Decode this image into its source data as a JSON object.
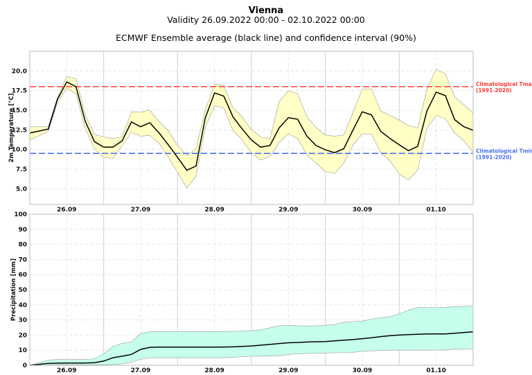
{
  "header": {
    "title": "Vienna",
    "validity": "Validity 26.09.2022 00:00 - 02.10.2022 00:00",
    "subtitle": "ECMWF Ensemble average (black line) and confidence interval (90%)"
  },
  "colors": {
    "temp_band": "#ffffc6",
    "precip_band": "#c6ffec",
    "mean_line": "#000000",
    "tmax_line": "#ff3b3b",
    "tmin_line": "#4a6ff0"
  },
  "chart_data": [
    {
      "type": "area",
      "ylabel": "2m Temperature [°C]",
      "xlim": [
        "2022-09-26 00:00",
        "2022-10-02 00:00"
      ],
      "ylim": [
        3.0,
        22.5
      ],
      "yticks": [
        "5.0",
        "7.5",
        "10.0",
        "12.5",
        "15.0",
        "17.5",
        "20.0"
      ],
      "xticks": [
        "26.09",
        "27.09",
        "28.09",
        "29.09",
        "30.09",
        "01.10"
      ],
      "grid": true,
      "time_step_hours": [
        0,
        6,
        9,
        12,
        15,
        18,
        21,
        24,
        27,
        30,
        33,
        36,
        39,
        42,
        45,
        48,
        51,
        54,
        57,
        60,
        63,
        66,
        69,
        72,
        75,
        78,
        81,
        84,
        87,
        90,
        93,
        96,
        99,
        102,
        105,
        108,
        111,
        114,
        117,
        120,
        123,
        126,
        129,
        132,
        135,
        138,
        141,
        144
      ],
      "mean": [
        12.1,
        12.6,
        16.4,
        18.6,
        18.0,
        13.6,
        11.0,
        10.3,
        10.3,
        11.1,
        13.5,
        12.9,
        13.4,
        12.1,
        10.6,
        9.0,
        7.35,
        7.9,
        14.0,
        17.2,
        16.8,
        14.15,
        12.6,
        11.2,
        10.3,
        10.5,
        12.75,
        14.05,
        13.85,
        11.7,
        10.5,
        9.95,
        9.6,
        10.1,
        12.5,
        14.8,
        14.4,
        12.3,
        11.4,
        10.6,
        9.85,
        10.4,
        14.9,
        17.3,
        16.85,
        13.8,
        12.9,
        12.45
      ],
      "upper": [
        12.9,
        12.9,
        16.65,
        19.3,
        19.0,
        14.4,
        11.95,
        11.6,
        11.4,
        11.6,
        14.8,
        14.75,
        15.0,
        13.55,
        12.4,
        10.5,
        9.2,
        10.1,
        15.0,
        18.3,
        18.15,
        15.3,
        14.15,
        12.5,
        11.6,
        11.35,
        16.1,
        17.5,
        17.1,
        14.15,
        12.8,
        11.85,
        11.7,
        11.85,
        14.75,
        17.7,
        17.7,
        14.9,
        14.35,
        13.75,
        13.05,
        12.75,
        17.7,
        20.2,
        19.6,
        16.7,
        15.7,
        14.65
      ],
      "lower": [
        11.2,
        12.3,
        16.0,
        17.8,
        17.1,
        12.7,
        10.1,
        9.0,
        8.85,
        10.5,
        12.2,
        11.7,
        11.8,
        10.8,
        9.0,
        7.1,
        5.1,
        6.6,
        12.8,
        15.6,
        15.3,
        12.4,
        11.2,
        9.6,
        8.65,
        9.15,
        10.9,
        12.0,
        11.4,
        9.35,
        8.25,
        7.2,
        6.95,
        8.25,
        10.6,
        12.0,
        11.95,
        9.6,
        8.55,
        6.9,
        6.1,
        7.4,
        12.7,
        14.35,
        13.9,
        12.1,
        11.1,
        9.65
      ],
      "reference_lines": [
        {
          "name": "Climatological Tmax",
          "period": "(1991-2020)",
          "value": 18.0,
          "color": "#ff3b3b"
        },
        {
          "name": "Climatological Tmin",
          "period": "(1991-2020)",
          "value": 9.5,
          "color": "#4a6ff0"
        }
      ]
    },
    {
      "type": "area",
      "ylabel": "Precipitation [mm]",
      "xlim": [
        "2022-09-26 00:00",
        "2022-10-02 00:00"
      ],
      "ylim": [
        0,
        100
      ],
      "yticks": [
        "0",
        "10",
        "20",
        "30",
        "40",
        "50",
        "60",
        "70",
        "80",
        "90",
        "100"
      ],
      "xticks": [
        "26.09",
        "27.09",
        "28.09",
        "29.09",
        "30.09",
        "01.10"
      ],
      "grid": true,
      "mean": [
        0,
        1.3,
        1.4,
        1.5,
        1.5,
        1.5,
        1.7,
        2.8,
        5.0,
        6.0,
        7.2,
        10.5,
        11.9,
        12,
        12,
        12,
        12,
        12,
        12,
        12,
        12.1,
        12.2,
        12.5,
        12.8,
        13.3,
        13.8,
        14.4,
        14.9,
        15.1,
        15.4,
        15.6,
        15.7,
        16.2,
        16.6,
        17.0,
        17.6,
        18.2,
        19.0,
        19.6,
        20.0,
        20.3,
        20.5,
        20.8,
        20.8,
        20.8,
        21.2,
        21.7,
        22.2
      ],
      "upper": [
        0,
        3.5,
        3.8,
        3.8,
        3.8,
        3.8,
        4.3,
        7.5,
        12.5,
        14.5,
        15.5,
        21,
        22.2,
        22.3,
        22.3,
        22.3,
        22.3,
        22.2,
        22.2,
        22.3,
        22.4,
        22.5,
        22.8,
        23,
        23.5,
        24.8,
        26.2,
        26.5,
        26.2,
        26,
        26.2,
        26.5,
        27,
        28.5,
        28.9,
        29.2,
        30.5,
        31.5,
        32.2,
        34,
        36.5,
        38.2,
        38.3,
        38.3,
        38.4,
        38.8,
        39.1,
        39.1
      ],
      "lower": [
        0,
        0.2,
        0.3,
        0.3,
        0.3,
        0.3,
        0.3,
        0.3,
        0.5,
        1.0,
        2.0,
        4.0,
        5.0,
        5.0,
        5.0,
        5.0,
        5.0,
        5.0,
        5.0,
        5.0,
        5.0,
        5.2,
        5.8,
        6.0,
        6.0,
        6.1,
        6.3,
        7.2,
        7.5,
        7.8,
        8.0,
        8.1,
        8.3,
        8.5,
        8.6,
        9.3,
        9.5,
        9.8,
        10,
        10,
        10,
        10,
        10,
        10,
        10.2,
        10.7,
        10.8,
        10.9
      ]
    }
  ]
}
